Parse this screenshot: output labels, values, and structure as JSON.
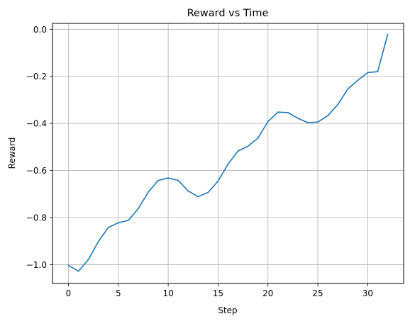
{
  "chart_data": {
    "type": "line",
    "title": "Reward vs Time",
    "xlabel": "Step",
    "ylabel": "Reward",
    "xlim": [
      -1.6,
      33.6
    ],
    "ylim": [
      -1.08,
      0.025
    ],
    "grid": true,
    "line_color": "#1f77b4",
    "grid_color": "#b0b0b0",
    "x_ticks": [
      0,
      5,
      10,
      15,
      20,
      25,
      30
    ],
    "x_tick_labels": [
      "0",
      "5",
      "10",
      "15",
      "20",
      "25",
      "30"
    ],
    "y_ticks": [
      -1.0,
      -0.8,
      -0.6,
      -0.4,
      -0.2,
      0.0
    ],
    "y_tick_labels": [
      "−1.0",
      "−0.8",
      "−0.6",
      "−0.4",
      "−0.2",
      "0.0"
    ],
    "series": [
      {
        "x": [
          0,
          1,
          2,
          3,
          4,
          5,
          6,
          7,
          8,
          9,
          10,
          11,
          12,
          13,
          14,
          15,
          16,
          17,
          18,
          19,
          20,
          21,
          22,
          23,
          24,
          25,
          26,
          27,
          28,
          29,
          30,
          31,
          32
        ],
        "values": [
          -1.003,
          -1.028,
          -0.978,
          -0.902,
          -0.842,
          -0.822,
          -0.812,
          -0.762,
          -0.692,
          -0.642,
          -0.632,
          -0.642,
          -0.687,
          -0.711,
          -0.693,
          -0.645,
          -0.573,
          -0.517,
          -0.497,
          -0.462,
          -0.392,
          -0.352,
          -0.354,
          -0.378,
          -0.397,
          -0.394,
          -0.367,
          -0.32,
          -0.254,
          -0.217,
          -0.184,
          -0.18,
          -0.022
        ]
      }
    ]
  }
}
